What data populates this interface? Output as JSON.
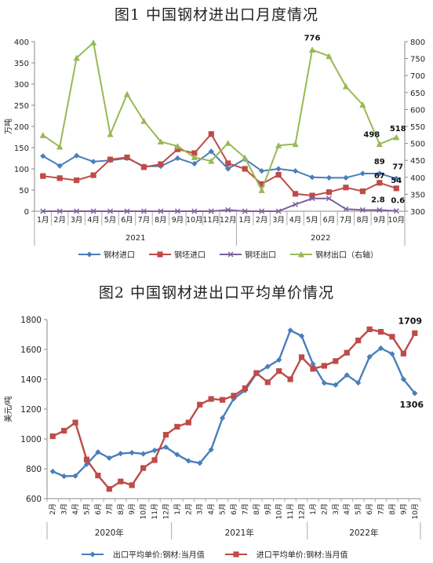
{
  "chart_data": [
    {
      "type": "line",
      "title": "图1  中国钢材进出口月度情况",
      "ylabel": "万吨",
      "ylim": [
        0,
        400
      ],
      "y2lim": [
        300,
        800
      ],
      "yticks": [
        0,
        50,
        100,
        150,
        200,
        250,
        300,
        350,
        400
      ],
      "y2ticks": [
        300,
        350,
        400,
        450,
        500,
        550,
        600,
        650,
        700,
        750,
        800
      ],
      "categories": [
        "1月",
        "2月",
        "3月",
        "4月",
        "5月",
        "6月",
        "7月",
        "8月",
        "9月",
        "10月",
        "11月",
        "12月",
        "1月",
        "2月",
        "3月",
        "4月",
        "5月",
        "6月",
        "7月",
        "8月",
        "9月",
        "10月"
      ],
      "years": [
        {
          "label": "2021",
          "span": 12
        },
        {
          "label": "2022",
          "span": 10
        }
      ],
      "series": [
        {
          "name": "钢材进口",
          "axis": "left",
          "color": "#4a7ebb",
          "marker": "diamond",
          "values": [
            130,
            107,
            131,
            117,
            120,
            125,
            106,
            106,
            125,
            112,
            141,
            100,
            123,
            95,
            100,
            95,
            80,
            79,
            79,
            89,
            89,
            77
          ]
        },
        {
          "name": "钢坯进口",
          "axis": "left",
          "color": "#be4b48",
          "marker": "square",
          "values": [
            83,
            78,
            73,
            85,
            122,
            127,
            104,
            111,
            146,
            137,
            182,
            113,
            100,
            64,
            86,
            41,
            37,
            45,
            56,
            47,
            67,
            54
          ]
        },
        {
          "name": "钢坯出口",
          "axis": "left",
          "color": "#7d60a0",
          "marker": "x",
          "values": [
            0,
            0,
            0,
            0,
            0,
            0,
            0,
            0,
            0,
            0,
            0,
            3,
            0,
            0,
            0,
            16,
            30,
            30,
            5,
            3,
            2.8,
            0.6
          ]
        },
        {
          "name": "钢材出口（右轴）",
          "axis": "right",
          "color": "#98b954",
          "marker": "triangle",
          "values": [
            524,
            490,
            752,
            797,
            527,
            645,
            566,
            505,
            492,
            459,
            448,
            501,
            458,
            362,
            494,
            498,
            776,
            757,
            668,
            614,
            498,
            518
          ]
        }
      ],
      "annotations": [
        {
          "text": "776",
          "series": 3,
          "index": 16
        },
        {
          "text": "89",
          "series": 0,
          "index": 20
        },
        {
          "text": "77",
          "series": 0,
          "index": 21
        },
        {
          "text": "498",
          "series": 3,
          "index": 20
        },
        {
          "text": "518",
          "series": 3,
          "index": 21
        },
        {
          "text": "67",
          "series": 1,
          "index": 20
        },
        {
          "text": "54",
          "series": 1,
          "index": 21
        },
        {
          "text": "2.8",
          "series": 2,
          "index": 20
        },
        {
          "text": "0.6",
          "series": 2,
          "index": 21
        }
      ],
      "legend_position": "bottom"
    },
    {
      "type": "line",
      "title": "图2  中国钢材进出口平均单价情况",
      "ylabel": "美元/吨",
      "ylim": [
        600,
        1800
      ],
      "yticks": [
        600,
        800,
        1000,
        1200,
        1400,
        1600,
        1800
      ],
      "categories": [
        "2月",
        "3月",
        "4月",
        "5月",
        "6月",
        "7月",
        "8月",
        "9月",
        "10月",
        "11月",
        "12月",
        "1月",
        "2月",
        "3月",
        "4月",
        "5月",
        "6月",
        "7月",
        "8月",
        "9月",
        "10月",
        "11月",
        "12月",
        "1月",
        "2月",
        "3月",
        "4月",
        "5月",
        "6月",
        "7月",
        "8月",
        "9月",
        "10月"
      ],
      "years": [
        {
          "label": "2020年",
          "span": 11
        },
        {
          "label": "2021年",
          "span": 12
        },
        {
          "label": "2022年",
          "span": 10
        }
      ],
      "series": [
        {
          "name": "出口平均单价:钢材:当月值",
          "color": "#4a7ebb",
          "marker": "diamond",
          "values": [
            782,
            750,
            752,
            830,
            912,
            872,
            902,
            908,
            900,
            923,
            945,
            895,
            853,
            838,
            928,
            1140,
            1270,
            1325,
            1438,
            1485,
            1530,
            1728,
            1690,
            1502,
            1375,
            1362,
            1428,
            1376,
            1550,
            1608,
            1570,
            1400,
            1306
          ]
        },
        {
          "name": "进口平均单价:钢材:当月值",
          "color": "#be4b48",
          "marker": "square",
          "values": [
            1018,
            1055,
            1110,
            862,
            755,
            665,
            715,
            690,
            805,
            858,
            1028,
            1082,
            1110,
            1230,
            1268,
            1262,
            1290,
            1340,
            1442,
            1380,
            1455,
            1400,
            1548,
            1470,
            1490,
            1522,
            1578,
            1660,
            1735,
            1718,
            1685,
            1572,
            1709
          ]
        }
      ],
      "annotations": [
        {
          "text": "1709",
          "series": 1,
          "index": 32
        },
        {
          "text": "1306",
          "series": 0,
          "index": 32
        }
      ],
      "legend_position": "bottom"
    }
  ],
  "colors": {
    "import_steel": "#4a7ebb",
    "import_billet": "#be4b48",
    "export_billet": "#7d60a0",
    "export_steel": "#98b954"
  }
}
